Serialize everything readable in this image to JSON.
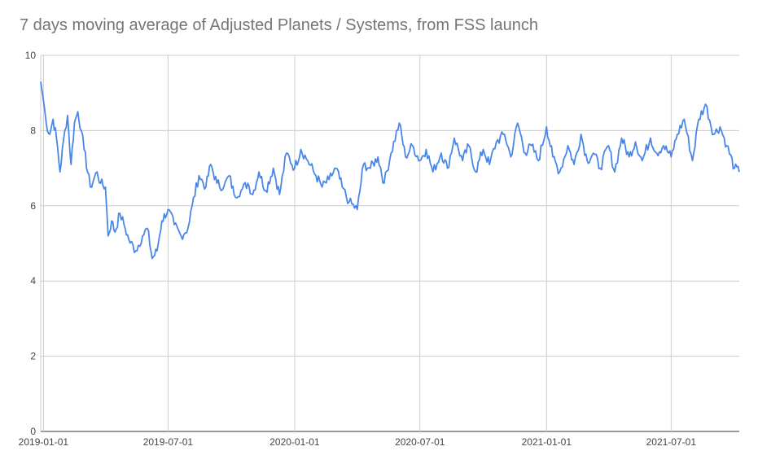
{
  "chart_data": {
    "type": "line",
    "title": "7 days moving average of Adjusted Planets / Systems, from FSS launch",
    "xlabel": "",
    "ylabel": "",
    "x_range": [
      "2018-12-28",
      "2021-10-08"
    ],
    "ylim": [
      0,
      10
    ],
    "y_ticks": [
      "0",
      "2",
      "4",
      "6",
      "8",
      "10"
    ],
    "x_ticks": [
      "2019-01-01",
      "2019-07-01",
      "2020-01-01",
      "2020-07-01",
      "2021-01-01",
      "2021-07-01"
    ],
    "grid": true,
    "legend": "none",
    "series_color": "#4a86e8",
    "series": [
      {
        "x": [
          "2018-12-28",
          "2019-01-01",
          "2019-01-05",
          "2019-01-10",
          "2019-01-15",
          "2019-01-20",
          "2019-01-25",
          "2019-02-01",
          "2019-02-05",
          "2019-02-10",
          "2019-02-15",
          "2019-02-20",
          "2019-02-25",
          "2019-03-01",
          "2019-03-10",
          "2019-03-20",
          "2019-03-25",
          "2019-04-01",
          "2019-04-05",
          "2019-04-10",
          "2019-04-15",
          "2019-04-22",
          "2019-04-28",
          "2019-05-05",
          "2019-05-15",
          "2019-05-25",
          "2019-06-01",
          "2019-06-08",
          "2019-06-15",
          "2019-06-22",
          "2019-07-01",
          "2019-07-10",
          "2019-07-20",
          "2019-07-30",
          "2019-08-05",
          "2019-08-15",
          "2019-08-25",
          "2019-09-01",
          "2019-09-10",
          "2019-09-20",
          "2019-09-28",
          "2019-10-05",
          "2019-10-15",
          "2019-10-25",
          "2019-11-01",
          "2019-11-10",
          "2019-11-20",
          "2019-12-01",
          "2019-12-10",
          "2019-12-20",
          "2020-01-01",
          "2020-01-10",
          "2020-01-20",
          "2020-02-01",
          "2020-02-10",
          "2020-02-20",
          "2020-03-01",
          "2020-03-10",
          "2020-03-20",
          "2020-04-01",
          "2020-04-10",
          "2020-04-20",
          "2020-05-01",
          "2020-05-10",
          "2020-05-20",
          "2020-06-01",
          "2020-06-10",
          "2020-06-20",
          "2020-07-01",
          "2020-07-10",
          "2020-07-20",
          "2020-08-01",
          "2020-08-10",
          "2020-08-20",
          "2020-09-01",
          "2020-09-10",
          "2020-09-20",
          "2020-10-01",
          "2020-10-10",
          "2020-10-20",
          "2020-11-01",
          "2020-11-10",
          "2020-11-20",
          "2020-12-01",
          "2020-12-10",
          "2020-12-20",
          "2021-01-01",
          "2021-01-10",
          "2021-01-20",
          "2021-02-01",
          "2021-02-10",
          "2021-02-20",
          "2021-03-01",
          "2021-03-10",
          "2021-03-20",
          "2021-04-01",
          "2021-04-10",
          "2021-04-20",
          "2021-05-01",
          "2021-05-10",
          "2021-05-20",
          "2021-06-01",
          "2021-06-10",
          "2021-06-20",
          "2021-07-01",
          "2021-07-10",
          "2021-07-20",
          "2021-08-01",
          "2021-08-10",
          "2021-08-20",
          "2021-09-01",
          "2021-09-10",
          "2021-09-20",
          "2021-10-01",
          "2021-10-08"
        ],
        "values": [
          9.3,
          8.8,
          8.2,
          7.9,
          8.3,
          7.8,
          6.9,
          8.0,
          8.4,
          7.1,
          8.2,
          8.5,
          8.0,
          7.5,
          6.5,
          6.9,
          6.6,
          6.5,
          5.2,
          5.6,
          5.3,
          5.8,
          5.5,
          5.1,
          4.8,
          5.2,
          5.4,
          4.6,
          4.8,
          5.6,
          5.9,
          5.5,
          5.2,
          5.4,
          6.0,
          6.8,
          6.5,
          7.1,
          6.6,
          6.5,
          6.8,
          6.3,
          6.4,
          6.6,
          6.3,
          6.9,
          6.4,
          7.0,
          6.3,
          7.4,
          7.0,
          7.5,
          7.2,
          6.8,
          6.5,
          6.7,
          7.0,
          6.5,
          6.1,
          5.9,
          7.1,
          7.0,
          7.3,
          6.6,
          7.4,
          8.2,
          7.3,
          7.6,
          7.2,
          7.5,
          6.9,
          7.4,
          7.0,
          7.8,
          7.2,
          7.6,
          6.9,
          7.5,
          7.1,
          7.7,
          7.9,
          7.3,
          8.2,
          7.4,
          7.6,
          7.2,
          8.1,
          7.3,
          6.9,
          7.6,
          7.1,
          7.9,
          7.2,
          7.4,
          7.0,
          7.6,
          6.9,
          7.8,
          7.3,
          7.7,
          7.2,
          7.8,
          7.4,
          7.6,
          7.3,
          7.9,
          8.3,
          7.2,
          8.3,
          8.7,
          7.9,
          8.1,
          7.6,
          7.0,
          6.9
        ]
      }
    ]
  }
}
